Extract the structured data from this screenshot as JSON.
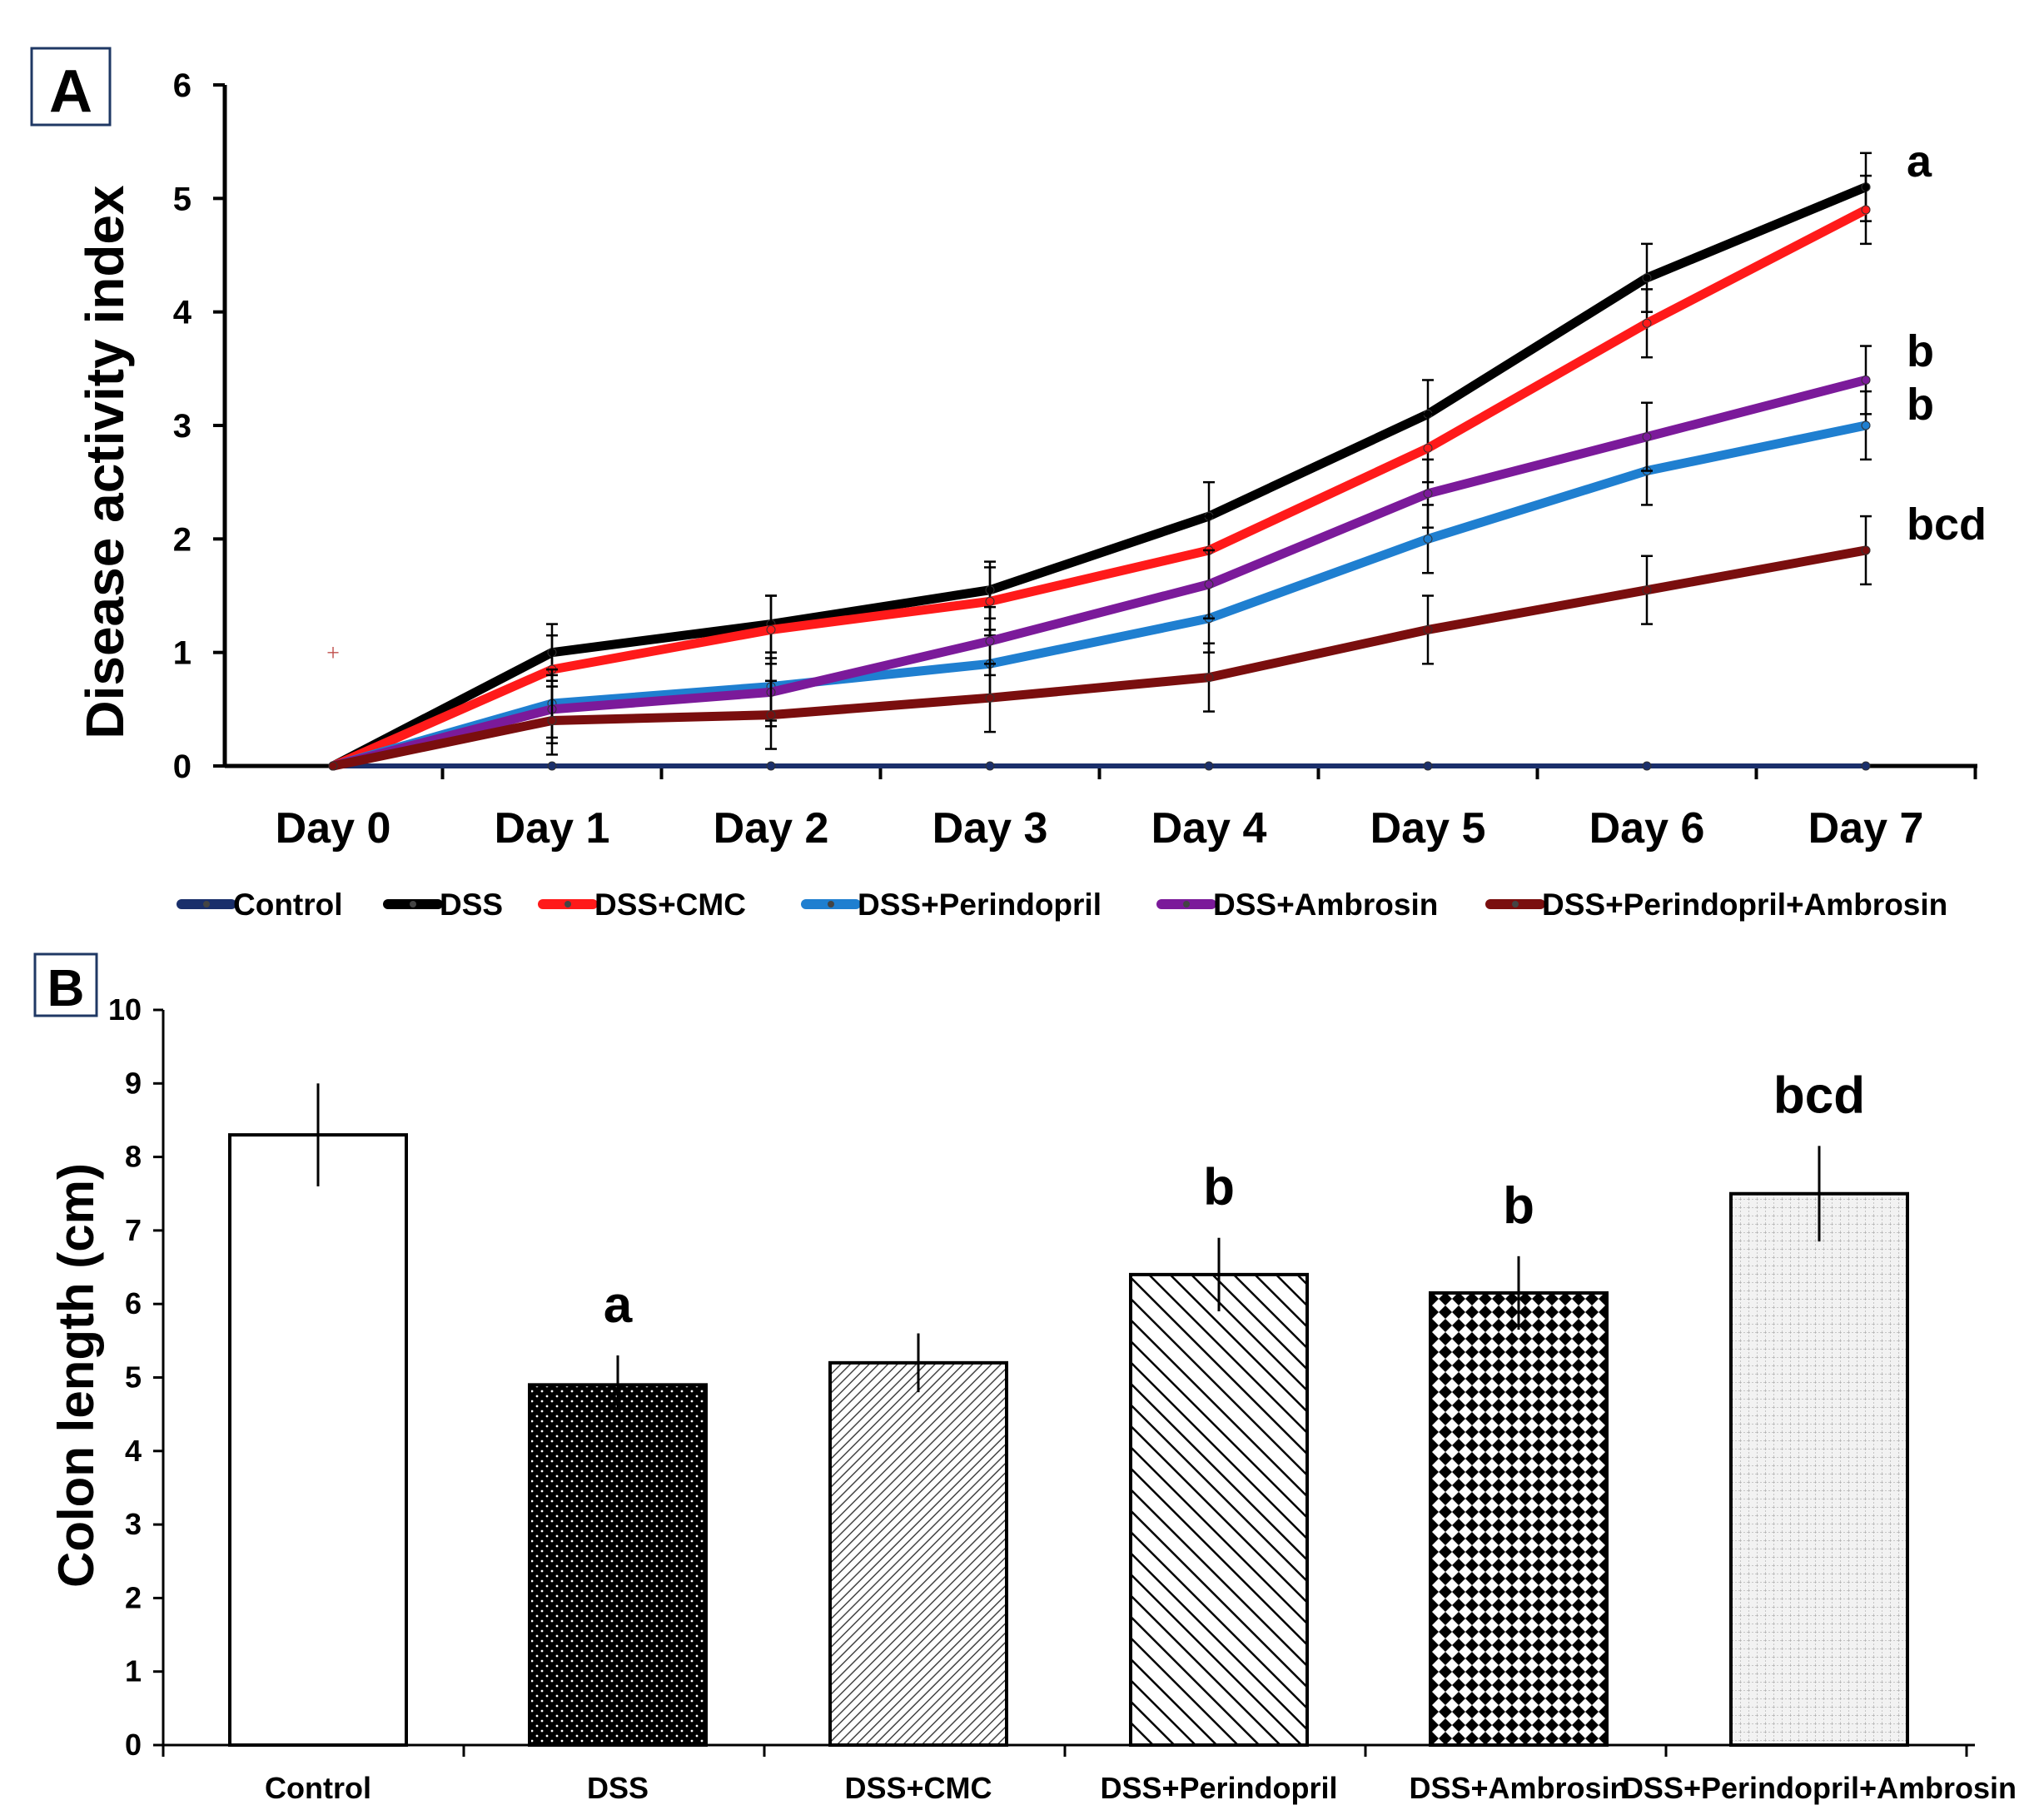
{
  "chart_data": [
    {
      "panel": "A",
      "type": "line",
      "ylabel": "Disease activity index",
      "xlabel": "",
      "ylim": [
        0,
        6
      ],
      "yticks": [
        "0",
        "1",
        "2",
        "3",
        "4",
        "5",
        "6"
      ],
      "categories": [
        "Day 0",
        "Day 1",
        "Day 2",
        "Day 3",
        "Day 4",
        "Day 5",
        "Day 6",
        "Day 7"
      ],
      "series": [
        {
          "name": "Control",
          "color": "#1a2f6b",
          "values": [
            0,
            0,
            0,
            0,
            0,
            0,
            0,
            0
          ],
          "errors": [
            0,
            0,
            0,
            0,
            0,
            0,
            0,
            0
          ]
        },
        {
          "name": "DSS",
          "color": "#000000",
          "values": [
            0,
            1.0,
            1.25,
            1.55,
            2.2,
            3.1,
            4.3,
            5.1
          ],
          "errors": [
            0,
            0.25,
            0.25,
            0.25,
            0.3,
            0.3,
            0.3,
            0.3
          ]
        },
        {
          "name": "DSS+CMC",
          "color": "#ff1a1a",
          "values": [
            0,
            0.85,
            1.2,
            1.45,
            1.9,
            2.8,
            3.9,
            4.9
          ],
          "errors": [
            0,
            0.3,
            0.3,
            0.3,
            0.3,
            0.3,
            0.3,
            0.3
          ]
        },
        {
          "name": "DSS+Perindopril",
          "color": "#1f7fd0",
          "values": [
            0,
            0.55,
            0.7,
            0.9,
            1.3,
            2.0,
            2.6,
            3.0
          ],
          "errors": [
            0,
            0.3,
            0.3,
            0.3,
            0.3,
            0.3,
            0.3,
            0.3
          ]
        },
        {
          "name": "DSS+Ambrosin",
          "color": "#7b1a9a",
          "values": [
            0,
            0.5,
            0.65,
            1.1,
            1.6,
            2.4,
            2.9,
            3.4
          ],
          "errors": [
            0,
            0.3,
            0.3,
            0.3,
            0.3,
            0.3,
            0.3,
            0.3
          ]
        },
        {
          "name": "DSS+Perindopril+Ambrosin",
          "color": "#7a0e0e",
          "values": [
            0,
            0.4,
            0.45,
            0.6,
            0.78,
            1.2,
            1.55,
            1.9
          ],
          "errors": [
            0,
            0.3,
            0.3,
            0.3,
            0.3,
            0.3,
            0.3,
            0.3
          ]
        }
      ],
      "annotations": [
        {
          "text": "a",
          "series": "DSS"
        },
        {
          "text": "b",
          "series": "DSS+Ambrosin"
        },
        {
          "text": "b",
          "series": "DSS+Perindopril"
        },
        {
          "text": "bcd",
          "series": "DSS+Perindopril+Ambrosin"
        }
      ],
      "stray_marker": {
        "x": "Day 0",
        "y": 1.0,
        "symbol": "+",
        "color": "#c0504d"
      },
      "legend_position": "bottom"
    },
    {
      "panel": "B",
      "type": "bar",
      "ylabel": "Colon length (cm)",
      "xlabel": "",
      "ylim": [
        0,
        10
      ],
      "yticks": [
        "0",
        "1",
        "2",
        "3",
        "4",
        "5",
        "6",
        "7",
        "8",
        "9",
        "10"
      ],
      "categories": [
        "Control",
        "DSS",
        "DSS+CMC",
        "DSS+Perindopril",
        "DSS+Ambrosin",
        "DSS+Perindopril+Ambrosin"
      ],
      "values": [
        8.3,
        4.9,
        5.2,
        6.4,
        6.15,
        7.5
      ],
      "errors": [
        0.7,
        0.4,
        0.4,
        0.5,
        0.5,
        0.65
      ],
      "annotations": [
        "",
        "a",
        "",
        "b",
        "b",
        "bcd"
      ],
      "patterns": [
        "white",
        "dots-dark",
        "diag-fine",
        "diag-coarse",
        "diamond-check",
        "grid-fine"
      ]
    }
  ]
}
